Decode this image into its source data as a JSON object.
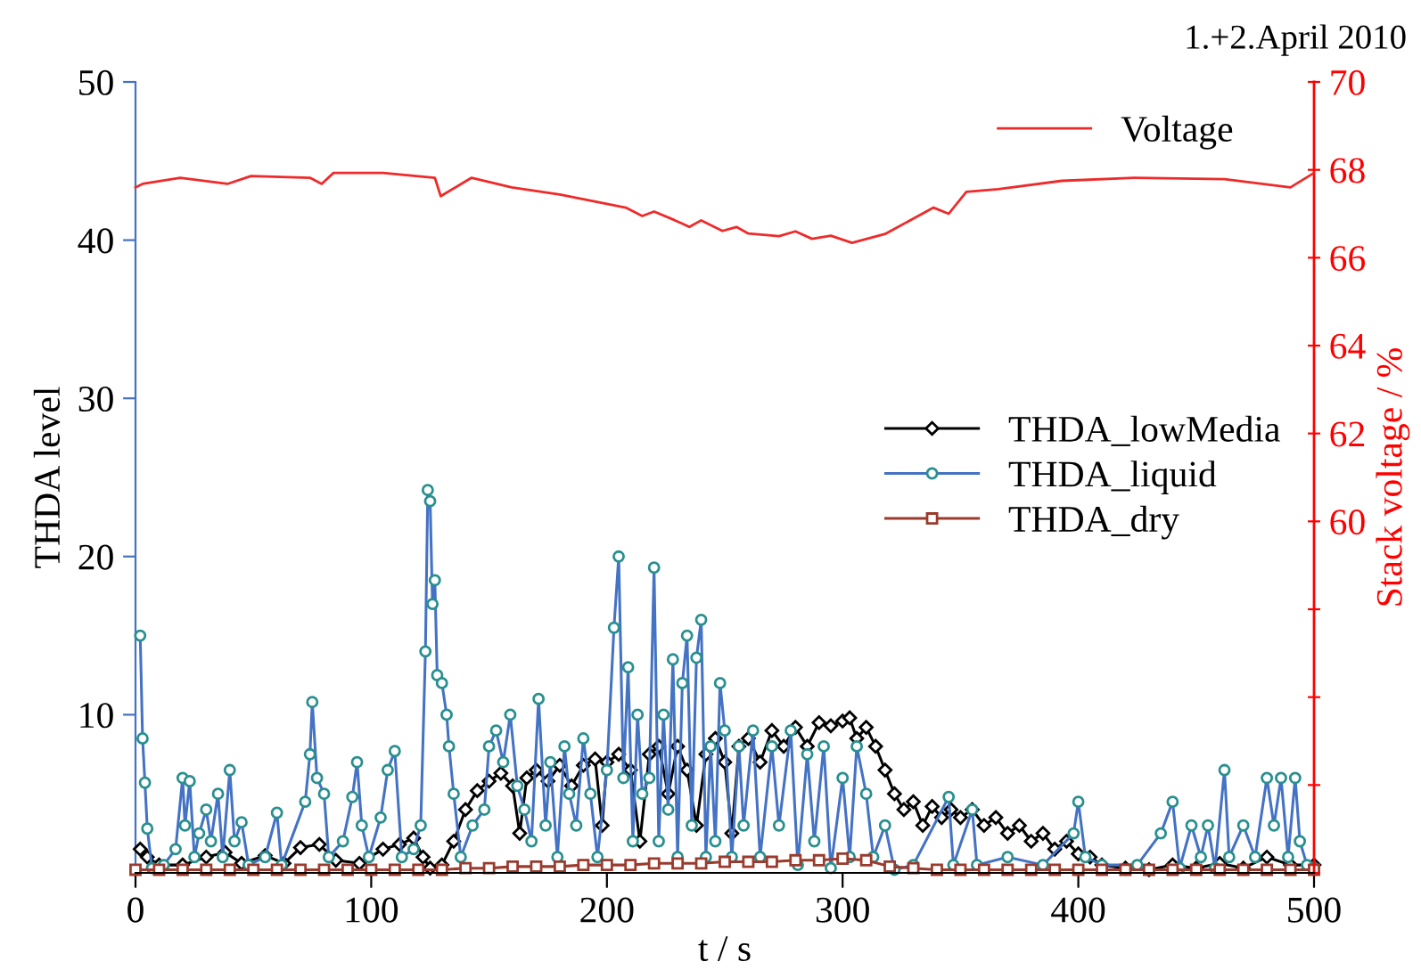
{
  "chart_data": {
    "type": "line",
    "title": "1.+2.April 2010",
    "xlabel": "t / s",
    "ylabel": "THDA level",
    "y2label": "Stack voltage / %",
    "xlim": [
      0,
      500
    ],
    "xticks": [
      0,
      100,
      200,
      300,
      400,
      500
    ],
    "ylim": [
      0,
      50
    ],
    "yticks": [
      10,
      20,
      30,
      40,
      50
    ],
    "y2lim": [
      52,
      70
    ],
    "y2ticks": [
      {
        "value": 52,
        "label": null
      },
      {
        "value": 54,
        "label": null
      },
      {
        "value": 56,
        "label": null
      },
      {
        "value": 58,
        "label": null
      },
      60,
      62,
      64,
      66,
      68,
      70
    ],
    "grid": false,
    "legend": "right",
    "line_style": "solid",
    "series": [
      {
        "name": "Voltage",
        "color": "#ee2a2a",
        "axis": "y2",
        "marker": "none",
        "x": [
          0,
          3,
          19,
          39,
          49,
          74,
          79,
          84,
          105,
          127,
          129.5,
          142.6,
          159.6,
          180,
          208,
          215,
          220,
          228.5,
          235,
          240,
          249,
          255,
          260,
          273,
          280,
          287,
          295,
          304,
          318,
          338.6,
          345,
          352.5,
          366,
          393,
          424,
          462,
          490,
          500
        ],
        "values": [
          67.6,
          67.68,
          67.82,
          67.68,
          67.86,
          67.82,
          67.68,
          67.93,
          67.93,
          67.82,
          67.4,
          67.82,
          67.6,
          67.44,
          67.14,
          66.95,
          67.05,
          66.86,
          66.7,
          66.85,
          66.61,
          66.7,
          66.55,
          66.49,
          66.6,
          66.43,
          66.5,
          66.34,
          66.54,
          67.14,
          67.0,
          67.5,
          67.56,
          67.75,
          67.82,
          67.79,
          67.6,
          67.93
        ]
      },
      {
        "name": "THDA_lowMedia",
        "color": "#000000",
        "marker": "diamond",
        "x": [
          2,
          5,
          10,
          20,
          30,
          38,
          45,
          55,
          63,
          70,
          78,
          85,
          95,
          105,
          112,
          118,
          122,
          125,
          130,
          135,
          140,
          145,
          150,
          155,
          160,
          163,
          166,
          170,
          175,
          180,
          185,
          190,
          195,
          198,
          200,
          205,
          210,
          214,
          218,
          222,
          226,
          230,
          234,
          238,
          242,
          246,
          250,
          253,
          256,
          260,
          265,
          270,
          275,
          280,
          285,
          290,
          295,
          300,
          303,
          306,
          310,
          314,
          318,
          322,
          326,
          330,
          334,
          338,
          342,
          346,
          350,
          355,
          360,
          365,
          370,
          375,
          380,
          385,
          390,
          395,
          400,
          405,
          410,
          420,
          430,
          440,
          450,
          460,
          470,
          480,
          490,
          500
        ],
        "values": [
          1.5,
          1,
          0.5,
          0.5,
          1,
          1.3,
          0.6,
          1.1,
          0.6,
          1.6,
          1.8,
          0.8,
          0.6,
          1.5,
          1.8,
          2.2,
          1,
          0.3,
          0.5,
          2,
          4,
          5.2,
          5.8,
          6.3,
          5.5,
          2.5,
          6,
          6.5,
          5.8,
          6.8,
          5.5,
          6.8,
          7.2,
          3,
          7,
          7.5,
          6.5,
          2,
          7.5,
          8,
          5,
          8,
          6.5,
          3,
          7.5,
          8.5,
          7,
          2.5,
          8,
          8.5,
          7,
          9,
          8,
          9.2,
          8,
          9.5,
          9.3,
          9.6,
          9.8,
          8.5,
          9.2,
          8,
          6.5,
          5,
          4,
          4.5,
          3,
          4.2,
          3.5,
          4,
          3.5,
          4,
          3,
          3.5,
          2.5,
          3,
          2,
          2.5,
          1.5,
          2,
          1.2,
          1,
          0.5,
          0.3,
          0.2,
          0.5,
          0.3,
          0.6,
          0.3,
          1,
          0.5,
          0.5
        ]
      },
      {
        "name": "THDA_liquid",
        "color": "#4472c4",
        "marker": "circle",
        "x": [
          2,
          3,
          4,
          5,
          7,
          12,
          17,
          20,
          21,
          23,
          25,
          27,
          30,
          32,
          35,
          37,
          40,
          42,
          45,
          48,
          55,
          60,
          62,
          72,
          74,
          75,
          77,
          80,
          82,
          88,
          92,
          94,
          96,
          99,
          104,
          107,
          110,
          113,
          118,
          121,
          123,
          124,
          125,
          126,
          127,
          128,
          130,
          132,
          133,
          135,
          138,
          143,
          148,
          150,
          153,
          156,
          159,
          162,
          165,
          168,
          171,
          174,
          176,
          179,
          182,
          184,
          187,
          190,
          193,
          196,
          200,
          203,
          205,
          207,
          209,
          211,
          213,
          215,
          218,
          220,
          222,
          224,
          226,
          228,
          230,
          232,
          234,
          236,
          238,
          240,
          242,
          244,
          246,
          248,
          250,
          253,
          256,
          258,
          262,
          265,
          270,
          273,
          278,
          281,
          285,
          288,
          292,
          295,
          300,
          303,
          306,
          310,
          313,
          318,
          322,
          330,
          345,
          347,
          355,
          357,
          370,
          385,
          398,
          400,
          403,
          410,
          425,
          435,
          440,
          443,
          448,
          452,
          455,
          458,
          462,
          464,
          470,
          475,
          480,
          483,
          486,
          489,
          492,
          494,
          497,
          500
        ],
        "values": [
          15,
          8.5,
          5.7,
          2.8,
          0.3,
          0.5,
          1.5,
          6,
          3,
          5.8,
          1,
          2.5,
          4,
          2,
          5,
          1,
          6.5,
          2,
          3.2,
          0.5,
          1,
          3.8,
          0.5,
          4.5,
          7.5,
          10.8,
          6,
          5,
          1,
          2,
          4.8,
          7,
          3,
          1,
          3.5,
          6.5,
          7.7,
          1,
          1.5,
          3,
          14,
          24.2,
          23.5,
          17,
          18.5,
          12.5,
          12,
          10,
          8,
          5,
          1,
          3,
          4,
          8,
          9,
          7,
          10,
          5.5,
          4,
          2,
          11,
          3,
          7,
          1,
          8,
          5,
          3,
          8.5,
          5,
          1,
          6.5,
          15.5,
          20,
          6,
          13,
          2,
          10,
          5,
          6,
          19.3,
          2,
          10,
          4,
          13.5,
          1,
          12,
          15,
          3,
          13.6,
          16,
          1,
          8,
          2,
          12,
          9,
          1,
          8,
          3,
          9,
          1,
          8,
          3,
          9,
          0.5,
          7.5,
          2,
          8,
          0.3,
          6,
          1,
          8,
          5,
          1,
          3,
          0.2,
          0.5,
          4.8,
          0.5,
          4,
          0.5,
          1,
          0.5,
          2.5,
          4.5,
          1,
          0.5,
          0.5,
          2.5,
          4.5,
          0.3,
          3,
          1,
          3,
          0.3,
          6.5,
          1,
          3,
          1,
          6,
          3,
          6,
          1,
          6,
          2,
          0.5,
          0.3
        ]
      },
      {
        "name": "THDA_dry",
        "color": "#9a3b2e",
        "marker": "square",
        "x": [
          0,
          10,
          20,
          30,
          40,
          50,
          60,
          70,
          80,
          90,
          100,
          110,
          120,
          130,
          140,
          150,
          160,
          170,
          180,
          190,
          200,
          210,
          220,
          230,
          240,
          250,
          260,
          270,
          280,
          290,
          300,
          310,
          320,
          330,
          340,
          350,
          360,
          370,
          380,
          390,
          400,
          410,
          420,
          430,
          440,
          450,
          460,
          470,
          480,
          490,
          500
        ],
        "values": [
          0.2,
          0.2,
          0.2,
          0.2,
          0.2,
          0.2,
          0.2,
          0.2,
          0.2,
          0.2,
          0.2,
          0.2,
          0.2,
          0.2,
          0.3,
          0.3,
          0.4,
          0.4,
          0.4,
          0.5,
          0.5,
          0.5,
          0.6,
          0.6,
          0.6,
          0.7,
          0.7,
          0.7,
          0.8,
          0.8,
          0.9,
          0.8,
          0.4,
          0.3,
          0.2,
          0.2,
          0.2,
          0.2,
          0.2,
          0.2,
          0.2,
          0.2,
          0.2,
          0.2,
          0.2,
          0.2,
          0.2,
          0.2,
          0.2,
          0.2,
          0.2
        ]
      }
    ]
  }
}
